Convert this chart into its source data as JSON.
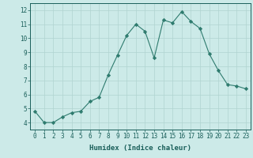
{
  "x": [
    0,
    1,
    2,
    3,
    4,
    5,
    6,
    7,
    8,
    9,
    10,
    11,
    12,
    13,
    14,
    15,
    16,
    17,
    18,
    19,
    20,
    21,
    22,
    23
  ],
  "y": [
    4.8,
    4.0,
    4.0,
    4.4,
    4.7,
    4.8,
    5.5,
    5.8,
    7.4,
    8.8,
    10.2,
    11.0,
    10.5,
    8.6,
    11.3,
    11.1,
    11.9,
    11.2,
    10.7,
    8.9,
    7.7,
    6.7,
    6.6,
    6.4
  ],
  "line_color": "#2e7b6e",
  "marker": "D",
  "marker_size": 2.2,
  "bg_color": "#cceae8",
  "grid_color": "#b0d4d0",
  "xlabel": "Humidex (Indice chaleur)",
  "xlabel_weight": "bold",
  "xlim": [
    -0.5,
    23.5
  ],
  "ylim": [
    3.5,
    12.5
  ],
  "yticks": [
    4,
    5,
    6,
    7,
    8,
    9,
    10,
    11,
    12
  ],
  "xticks": [
    0,
    1,
    2,
    3,
    4,
    5,
    6,
    7,
    8,
    9,
    10,
    11,
    12,
    13,
    14,
    15,
    16,
    17,
    18,
    19,
    20,
    21,
    22,
    23
  ],
  "tick_fontsize": 5.5,
  "xlabel_fontsize": 6.5,
  "tick_color": "#1a5f5a",
  "label_color": "#1a5f5a"
}
